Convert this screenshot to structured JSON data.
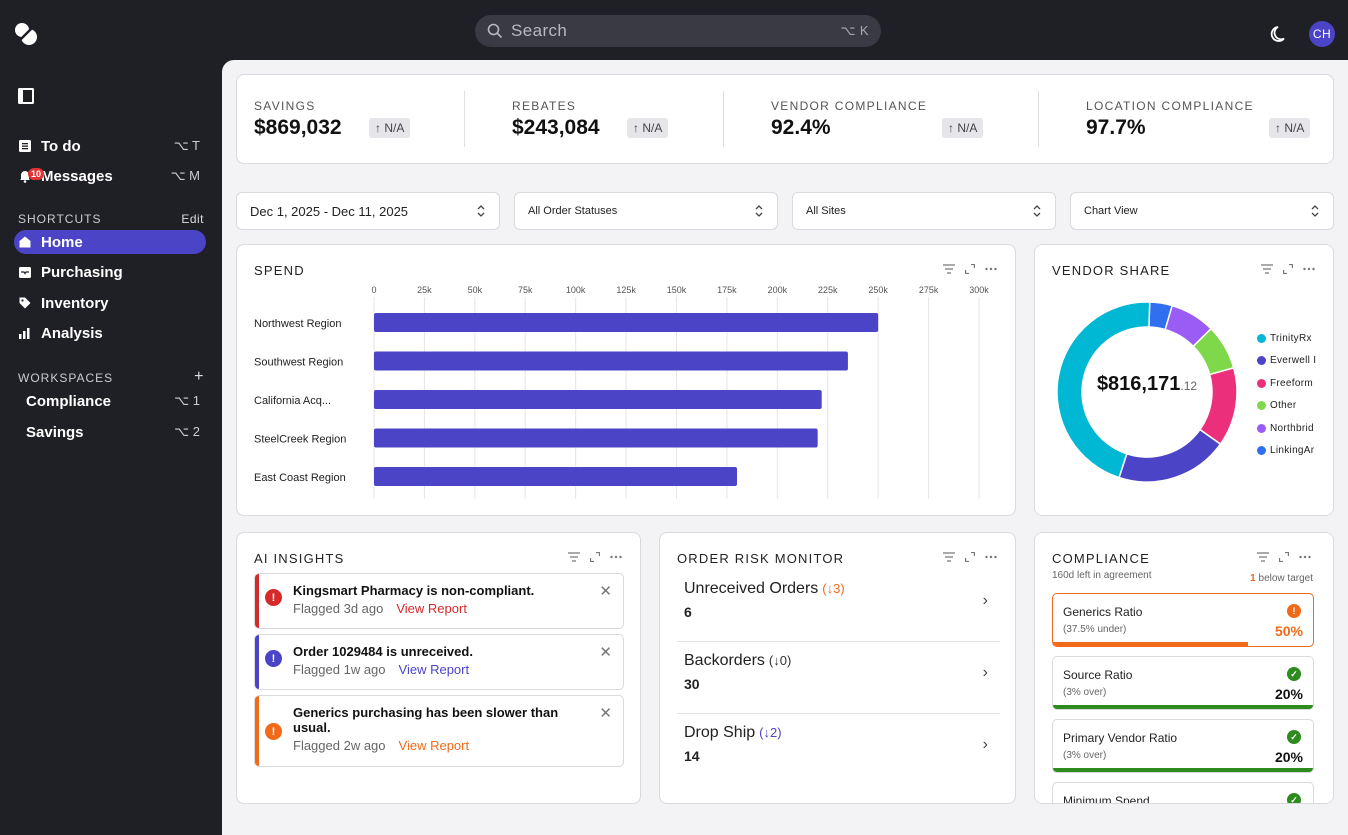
{
  "header": {
    "search_placeholder": "Search",
    "search_shortcut": "⌥ K",
    "avatar_initials": "CH"
  },
  "sidebar": {
    "top_items": [
      {
        "label": "To do",
        "shortcut": "⌥ T",
        "icon": "list-icon"
      },
      {
        "label": "Messages",
        "shortcut": "⌥ M",
        "icon": "bell-icon",
        "badge": "10"
      }
    ],
    "shortcuts_title": "SHORTCUTS",
    "shortcuts_action": "Edit",
    "shortcuts": [
      {
        "label": "Home",
        "icon": "home-icon",
        "active": true
      },
      {
        "label": "Purchasing",
        "icon": "inbox-icon"
      },
      {
        "label": "Inventory",
        "icon": "tag-icon"
      },
      {
        "label": "Analysis",
        "icon": "bar-chart-icon"
      }
    ],
    "workspaces_title": "WORKSPACES",
    "workspaces_action": "+",
    "workspaces": [
      {
        "label": "Compliance",
        "shortcut": "⌥ 1"
      },
      {
        "label": "Savings",
        "shortcut": "⌥ 2"
      }
    ]
  },
  "kpis": [
    {
      "label": "SAVINGS",
      "value": "$869,032",
      "delta": "N/A"
    },
    {
      "label": "REBATES",
      "value": "$243,084",
      "delta": "N/A"
    },
    {
      "label": "VENDOR COMPLIANCE",
      "value": "92.4%",
      "delta": "N/A"
    },
    {
      "label": "LOCATION COMPLIANCE",
      "value": "97.7%",
      "delta": "N/A"
    }
  ],
  "filters": {
    "date_range": "Dec 1, 2025 - Dec 11, 2025",
    "order_status": "All Order Statuses",
    "sites": "All Sites",
    "view": "Chart View"
  },
  "spend": {
    "title": "SPEND",
    "chart_data": {
      "type": "bar",
      "orientation": "horizontal",
      "categories": [
        "Northwest Region",
        "Southwest Region",
        "California Acq...",
        "SteelCreek Region",
        "East Coast Region"
      ],
      "values": [
        250000,
        235000,
        222000,
        220000,
        180000
      ],
      "xticks": [
        "0",
        "25k",
        "50k",
        "75k",
        "100k",
        "125k",
        "150k",
        "175k",
        "200k",
        "225k",
        "250k",
        "275k",
        "300k"
      ],
      "xlim": [
        0,
        300000
      ],
      "color": "#4b44c6"
    }
  },
  "vendor_share": {
    "title": "VENDOR SHARE",
    "center_main": "$816,171",
    "center_cents": ".12",
    "chart_data": {
      "type": "pie",
      "donut": true,
      "slices": [
        {
          "label": "TrinityRx",
          "value": 45,
          "color": "#00b8d4"
        },
        {
          "label": "Everwell I",
          "value": 20,
          "color": "#4b44c6"
        },
        {
          "label": "Freeform",
          "value": 14,
          "color": "#ec2f7b"
        },
        {
          "label": "Other",
          "value": 8,
          "color": "#7fd84a"
        },
        {
          "label": "Northbrid",
          "value": 8,
          "color": "#9b5cf6"
        },
        {
          "label": "LinkingAr",
          "value": 4,
          "color": "#2f6ff0"
        }
      ]
    }
  },
  "ai_insights": {
    "title": "AI INSIGHTS",
    "items": [
      {
        "text": "Kingsmart Pharmacy is non-compliant.",
        "flagged": "Flagged 3d ago",
        "link": "View Report",
        "color": "#d42a2a"
      },
      {
        "text": "Order 1029484 is unreceived.",
        "flagged": "Flagged 1w ago",
        "link": "View Report",
        "color": "#4b44c6"
      },
      {
        "text": "Generics purchasing has been slower than usual.",
        "flagged": "Flagged 2w ago",
        "link": "View Report",
        "color": "#f06a1a"
      }
    ]
  },
  "order_risk": {
    "title": "ORDER RISK MONITOR",
    "items": [
      {
        "name": "Unreceived Orders",
        "delta": "(↓3)",
        "count": "6",
        "delta_color": "#f06a1a"
      },
      {
        "name": "Backorders",
        "delta": "(↓0)",
        "count": "30",
        "delta_color": "#333333"
      },
      {
        "name": "Drop Ship",
        "delta": "(↓2)",
        "count": "14",
        "delta_color": "#4b44c6"
      }
    ]
  },
  "compliance": {
    "title": "COMPLIANCE",
    "subtitle": "160d left in agreement",
    "below_count": "1",
    "below_text": "below target",
    "items": [
      {
        "name": "Generics Ratio",
        "sub": "(37.5% under)",
        "pct": "50%",
        "status": "warning",
        "progress": 0.75,
        "color": "#f06a1a"
      },
      {
        "name": "Source Ratio",
        "sub": "(3% over)",
        "pct": "20%",
        "status": "ok",
        "progress": 1.0,
        "color": "#2e8b1e"
      },
      {
        "name": "Primary Vendor Ratio",
        "sub": "(3% over)",
        "pct": "20%",
        "status": "ok",
        "progress": 1.0,
        "color": "#2e8b1e"
      },
      {
        "name": "Minimum Spend",
        "sub": "",
        "pct": "",
        "status": "ok",
        "progress": 1.0,
        "color": "#2e8b1e"
      }
    ]
  }
}
